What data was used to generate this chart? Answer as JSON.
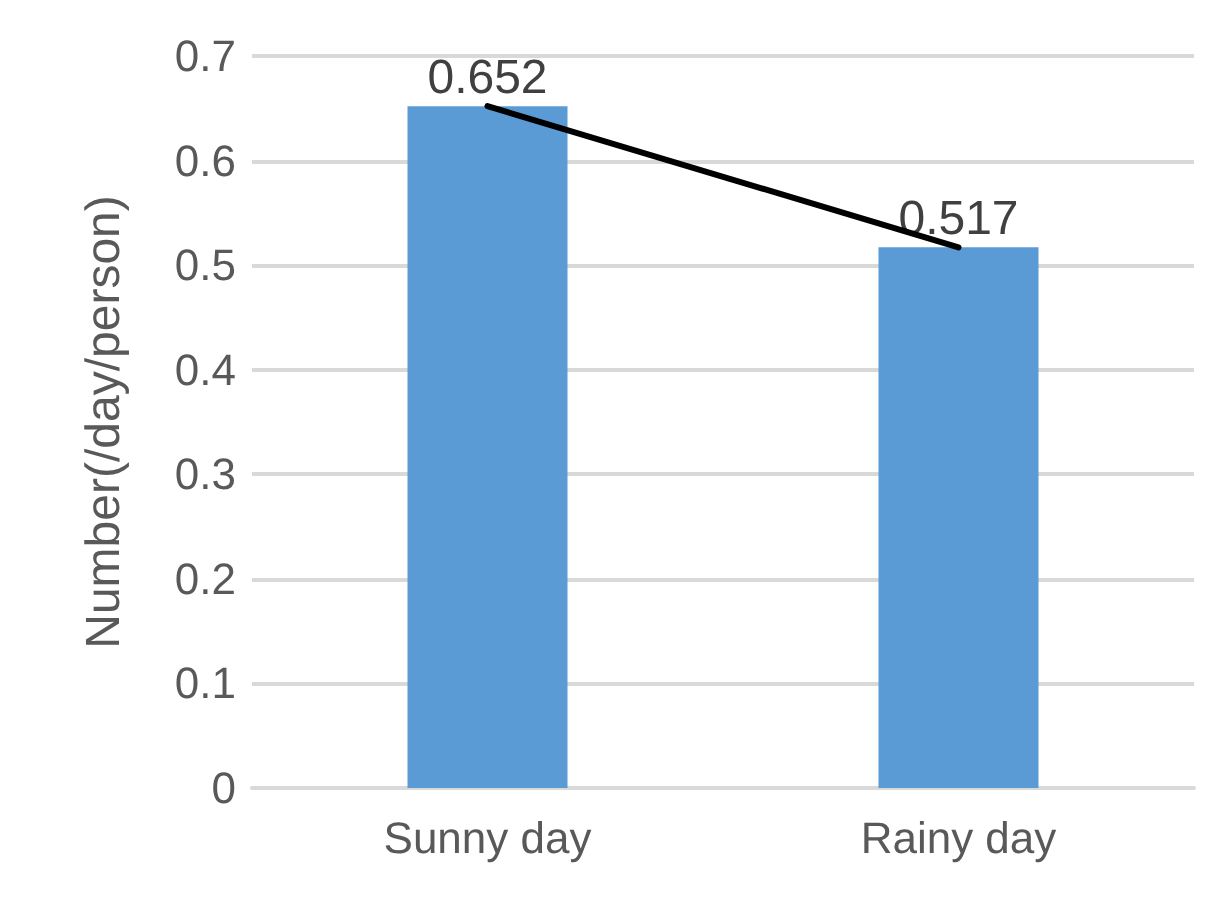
{
  "chart_data": {
    "type": "bar",
    "ylabel": "Number(/day/person)",
    "categories": [
      "Sunny day",
      "Rainy day"
    ],
    "series": [
      {
        "color": "#5b9bd5",
        "values": [
          0.652,
          0.517
        ],
        "value_labels": [
          "0.652",
          "0.517"
        ]
      },
      {
        "type": "line",
        "color": "#000000",
        "values": [
          0.652,
          0.517
        ]
      }
    ],
    "ylim": [
      0,
      0.7
    ],
    "yticks": [
      0,
      0.1,
      0.2,
      0.3,
      0.4,
      0.5,
      0.6,
      0.7
    ],
    "grid": "y",
    "marker": "none"
  }
}
